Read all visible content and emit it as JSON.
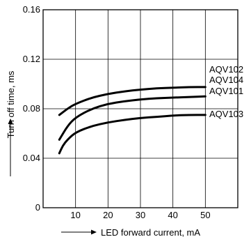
{
  "chart_data": {
    "type": "line",
    "title": "",
    "xlabel": "LED forward current, mA",
    "ylabel": "Turn off time, ms",
    "xlim": [
      0,
      60
    ],
    "ylim": [
      0,
      0.16
    ],
    "x_ticks": [
      "10",
      "20",
      "30",
      "40",
      "50"
    ],
    "y_ticks": [
      "0",
      "0.04",
      "0.08",
      "0.12",
      "0.16"
    ],
    "grid": true,
    "series": [
      {
        "name": "AQV102\nAQV104",
        "x": [
          5,
          7.5,
          10,
          15,
          20,
          25,
          30,
          35,
          40,
          45,
          50
        ],
        "y": [
          0.075,
          0.08,
          0.084,
          0.089,
          0.092,
          0.094,
          0.0955,
          0.0965,
          0.097,
          0.0975,
          0.0975
        ]
      },
      {
        "name": "AQV101",
        "x": [
          5,
          7.5,
          10,
          15,
          20,
          25,
          30,
          35,
          40,
          45,
          50
        ],
        "y": [
          0.055,
          0.066,
          0.073,
          0.08,
          0.084,
          0.086,
          0.0875,
          0.0885,
          0.089,
          0.0895,
          0.09
        ]
      },
      {
        "name": "AQV103",
        "x": [
          5,
          6,
          7.5,
          10,
          15,
          20,
          25,
          30,
          35,
          40,
          45,
          50
        ],
        "y": [
          0.044,
          0.05,
          0.055,
          0.061,
          0.066,
          0.069,
          0.071,
          0.0725,
          0.0735,
          0.0745,
          0.075,
          0.075
        ]
      }
    ]
  }
}
